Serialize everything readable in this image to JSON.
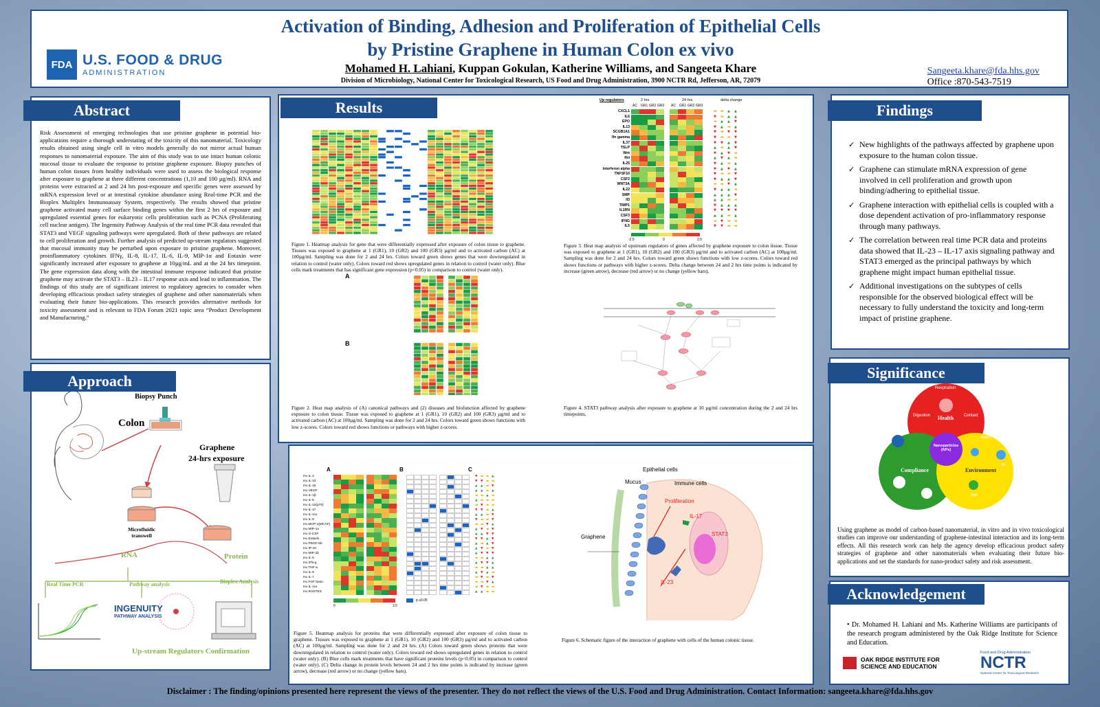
{
  "header": {
    "title_line1": "Activation of Binding, Adhesion and Proliferation of Epithelial Cells",
    "title_line2": "by Pristine Graphene in Human Colon ex vivo",
    "first_author": "Mohamed H. Lahiani",
    "other_authors": ", Kuppan Gokulan, Katherine Williams, and Sangeeta Khare",
    "affiliation": "Division of Microbiology, National Center for Toxicological Research, US Food and Drug Administration, 3900 NCTR Rd, Jefferson, AR, 72079",
    "logo_mark": "FDA",
    "logo_line1": "U.S. FOOD & DRUG",
    "logo_line2": "ADMINISTRATION",
    "email": "Sangeeta.khare@fda.hhs.gov",
    "office": "Office :870-543-7519"
  },
  "abstract": {
    "heading": "Abstract",
    "text": "Risk Assessment of emerging technologies that use pristine graphene in potential bio-applications require a thorough understating of the toxicity of this nanomaterial. Toxicology results obtained using single cell in vitro models generally do not mirror actual human responses to nanomaterial exposure. The aim of this study was to use intact human colonic mucosal tissue to evaluate the response to pristine graphene exposure. Biopsy punches of human colon tissues from healthy individuals were used to assess the biological response after exposure to graphene at three different concentrations (1,10 and 100 µg/ml). RNA and proteins were extracted at 2 and 24 hrs post-exposure and specific genes were assessed by mRNA expression level or at intestinal cytokine abundance using Real-time PCR and the Bioplex Multiplex Immunoassay System, respectively. The results showed that pristine graphene activated many cell surface binding genes within the first 2 hrs of exposure and upregulated essential genes for eukaryotic cells proliferation such as PCNA (Proliferating cell nuclear antigen). The Ingenuity Pathway Analysis of the real time PCR data revealed that STAT3 and VEGF signaling pathways were upregulated. Both of these pathways are related to cell proliferation and growth. Further analysis of predicted up-stream regulators suggested that mucosal immunity may be perturbed upon exposure to pristine graphene. Moreover, proinflammatory cytokines IFNγ, IL-8, IL-17, IL-6, IL-9, MIP-1α and Eotaxin were significantly increased after exposure to graphene at 10µg/mL and at the 24 hrs timepoint. The gene expression data along with the intestinal immune response indicated that pristine graphene may activate the STAT3 – IL23 – IL17 response axis and lead to inflammation. The findings of this study are of significant interest to regulatory agencies to consider when developing efficacious product safety strategies of graphene and other nanomaterials when evaluating their future bio-applications. This research provides alternative methods for toxicity assessment and is relevant to FDA Forum 2021 topic area “Product Development and Manufacturing.”"
  },
  "approach": {
    "heading": "Approach",
    "biopsy": "Biopsy Punch",
    "colon": "Colon",
    "graphene": "Graphene",
    "exposure": "24-hrs exposure",
    "transwell": "Microfluidic transwell",
    "rna": "RNA",
    "protein": "Protein",
    "pcr": "Real Time PCR",
    "pathway": "Pathway analysis",
    "bioplex": "Bioplex Analysis",
    "ingenuity": "INGENUITY",
    "ingenuity_sub": "PATHWAY ANALYSIS",
    "upstream": "Up-stream Regulators Confirmation"
  },
  "results": {
    "heading": "Results",
    "fig1": "Figure 1. Heatmap analysis for gene that were differentially expressed after exposure of colon tissue to graphene. Tissues was exposed to graphene at 1 (GR1), 10 (GR2) and 100 (GR3) µg/ml and to activated carbon (AC) at 100µg/ml. Sampling was done for 2 and 24 hrs. Colors toward green shows genes that were downregulated in relation to control (water only). Colors toward red shows upregulated genes in relation to control (water only). Blue cells mark treatments that has significant gene expression (p<0.05) in comparison to control (water only).",
    "fig2": "Figure 2. Heat map analysis of (A) canonical pathways and (2) diseases and biofunction affected by graphene exposure to colon tissue. Tissue was exposed to graphene at 1 (GR1), 10 (GR2) and 100 (GR3) µg/ml and to activated carbon (AC) at 100µg/ml. Sampling was done for 2 and 24 hrs. Colors toward green shows functions with low z-scores. Colors toward red shows functions or pathways with higher z-scores.",
    "fig3": "Figure 3. Heat map analysis of upstream regulators of genes affected by graphene exposure to colon tissue. Tissue was exposed to graphene at 1 (GR1), 10 (GR2) and 100 (GR3) µg/ml and to activated carbon (AC) at 100µg/ml. Sampling was done for 2 and 24 hrs. Colors toward green shows functions with low z-scores. Colors toward red shows functions or pathways with higher z-scores. Delta change between 24 and 2 hrs time points is indicated by increase (green arrow), decrease (red arrow) or no change (yellow bars).",
    "fig4": "Figure 4. STAT3 pathway analysis after exposure to graphene at 10 µg/ml concentration during the 2 and 24 hrs timepoints.",
    "fig5": "Figure 5. Heatmap analysis for proteins that were differentially expressed after exposure of colon tissue to graphene. Tissues was exposed to graphene at 1 (GR1), 10 (GR2) and 100 (GR3) µg/ml and to activated carbon (AC) at 100µg/ml. Sampling was done for 2 and 24 hrs. (A) Colors toward green shows proteins that were downregulated in relation to control (water only). Colors toward red shows upregulated genes in relation to control (water only). (B) Blue cells mark treatments that have significant proteins levels (p<0.05) in comparison to control (water only). (C) Delta change in protein levels between 24 and 2 hrs time points is indicated by increase (green arrow), decrease (red arrow) or no change (yellow bars).",
    "fig6": "Figure 6. Schematic figure of the interaction of graphene with cells of the human colonic tissue.",
    "fig3_regulators": [
      "CXCL1",
      "IL6",
      "EPO",
      "IL13",
      "SCGB1A1",
      "Ifn gamma",
      "IL37",
      "TSLP",
      "Wnt",
      "Ifnl",
      "IL25",
      "Interferon alpha",
      "TNFSF10",
      "CSF2",
      "WNT3A",
      "IL22",
      "SMP",
      "Il3",
      "TIMP1",
      "IL1RN",
      "CSF3",
      "IFNG",
      "IL5"
    ],
    "fig3_col_head": "Up regulators",
    "fig3_2hrs": "2 hrs",
    "fig3_24hrs": "24 hrs",
    "fig3_delta": "delta change",
    "fig3_groups": [
      "AC",
      "GR1",
      "GR2",
      "GR3"
    ],
    "fig3_scale": [
      "-2.5",
      "0",
      "2.5"
    ],
    "fig5_proteins": [
      "Hu IL-4",
      "Hu IL-13",
      "Hu IL-15",
      "Hu VEGF",
      "Hu IL-1β",
      "Hu IL-5",
      "Hu IL-12(p70)",
      "Hu IL-17",
      "Hu IL-1ra",
      "Hu IL-8",
      "Hu MCP-1(MCAF)",
      "Hu MIP-1a",
      "Hu G-CSF",
      "Hu Eotaxin",
      "Hu PDGF-bb",
      "Hu IP-10",
      "Hu MIP-1b",
      "Hu IL-6",
      "Hu IFN-g",
      "Hu TNF-a",
      "Hu IL-9",
      "Hu IL-7",
      "Hu FGF basic",
      "Hu IL-1ra",
      "Hu RANTES"
    ],
    "fig5_scale": [
      "0",
      "3.5"
    ],
    "fig5_pval": "p ≤0.05",
    "panel_a": "A",
    "panel_b": "B",
    "panel_c": "C",
    "fig6_labels": {
      "epithelial": "Epithelial cells",
      "mucus": "Mucus",
      "immune": "Immune cells",
      "prolif": "Proliferation",
      "il17": "IL-17",
      "stat3": "STAT3",
      "graphene": "Graphene",
      "il23": "IL-23"
    }
  },
  "findings": {
    "heading": "Findings",
    "items": [
      "New highlights of the pathways affected by graphene upon exposure to the human colon tissue.",
      "Graphene can stimulate mRNA expression of gene involved in cell proliferation and growth upon binding/adhering to epithelial tissue.",
      "Graphene interaction with epithelial cells is coupled with a dose dependent activation of pro-inflammatory response through many pathways.",
      "The correlation between real time PCR data and proteins data showed that IL-23 – IL-17 axis signaling pathway and STAT3 emerged as the principal pathways by which graphene might impact human epithelial tissue.",
      "Additional investigations on the subtypes of cells responsible for the observed biological effect will be necessary to fully understand the toxicity and long-term impact of pristine graphene."
    ]
  },
  "significance": {
    "heading": "Significance",
    "health": "Health",
    "compliance": "Compliance",
    "environment": "Environment",
    "nano": "Nanoparticles (NPs)",
    "respiration": "Respiration",
    "digestion": "Digestion",
    "contact": "Contact",
    "water": "Water",
    "soil": "Soil",
    "air": "Air",
    "text": "Using graphene as model of carbon-based nanomaterial, in vitro and in vivo toxicological studies can improve our understanding of graphene-intestinal interaction and its long-term effects. All this research work can help the agency develop efficacious product safety strategies of graphene and other nanomaterials when evaluating their future bio-applications and set the standards for nano-product safety and risk assessment."
  },
  "ack": {
    "heading": "Acknowledgement",
    "text": "• Dr. Mohamed H. Lahiani and Ms. Katherine Williams are participants of the research program administered by the Oak Ridge Institute for Science and Education.",
    "orise1": "OAK RIDGE INSTITUTE FOR",
    "orise2": "SCIENCE AND EDUCATION",
    "nctr_top": "Food and Drug Administration",
    "nctr": "NCTR",
    "nctr_sub": "National Center for Toxicological Research"
  },
  "disclaimer": "Disclaimer : The finding/opinions presented here represent the views of the presenter. They do not reflect the views of the U.S. Food and Drug Administration. Contact Information: sangeeta.khare@fda.hhs.gov",
  "colors": {
    "navy": "#1f4e8c",
    "red": "#e52121",
    "green": "#2e9b2e",
    "yellow": "#ffe000",
    "blue": "#1e63c0"
  }
}
